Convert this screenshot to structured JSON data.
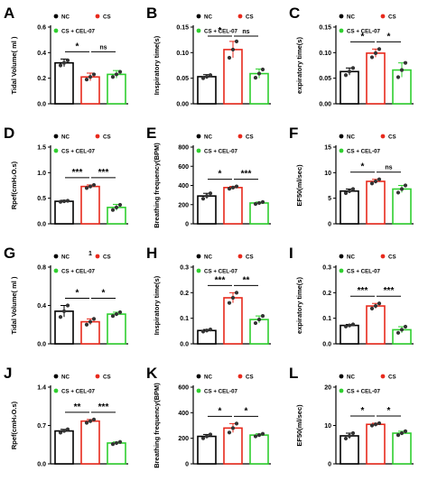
{
  "figure": {
    "stray_mark": "1"
  },
  "colors": {
    "NC": "#000000",
    "CS": "#e8291c",
    "CS + CEL-07": "#2fcf2f",
    "point": "#333333"
  },
  "chart_data": [
    {
      "id": "A",
      "type": "bar",
      "ylabel": "Tidal Volume( ml )",
      "ylim": [
        0,
        0.6
      ],
      "ticks": [
        "0.0",
        "0.2",
        "0.4",
        "0.6"
      ],
      "categories": [
        "NC",
        "CS",
        "CS + CEL-07"
      ],
      "values": [
        0.32,
        0.21,
        0.23
      ],
      "errors": [
        0.03,
        0.03,
        0.03
      ],
      "points": [
        [
          0.3,
          0.32,
          0.34
        ],
        [
          0.19,
          0.21,
          0.23
        ],
        [
          0.21,
          0.23,
          0.25
        ]
      ],
      "comparisons": [
        {
          "from": 0,
          "to": 1,
          "label": "*"
        },
        {
          "from": 1,
          "to": 2,
          "label": "ns"
        }
      ],
      "legend": [
        "NC",
        "CS",
        "CS + CEL-07"
      ]
    },
    {
      "id": "B",
      "type": "bar",
      "ylabel": "Inspiratory time(s)",
      "ylim": [
        0,
        0.15
      ],
      "ticks": [
        "0.00",
        "0.05",
        "0.10",
        "0.15"
      ],
      "categories": [
        "NC",
        "CS",
        "CS + CEL-07"
      ],
      "values": [
        0.053,
        0.106,
        0.059
      ],
      "errors": [
        0.004,
        0.016,
        0.009
      ],
      "points": [
        [
          0.05,
          0.053,
          0.056
        ],
        [
          0.09,
          0.106,
          0.122
        ],
        [
          0.051,
          0.059,
          0.067
        ]
      ],
      "comparisons": [
        {
          "from": 0,
          "to": 1,
          "label": "*"
        },
        {
          "from": 1,
          "to": 2,
          "label": "ns"
        }
      ],
      "legend": [
        "NC",
        "CS",
        "CS + CEL-07"
      ]
    },
    {
      "id": "C",
      "type": "bar",
      "ylabel": "expiratory time(s)",
      "ylim": [
        0,
        0.15
      ],
      "ticks": [
        "0.00",
        "0.05",
        "0.10",
        "0.15"
      ],
      "categories": [
        "NC",
        "CS",
        "CS + CEL-07"
      ],
      "values": [
        0.063,
        0.099,
        0.066
      ],
      "errors": [
        0.007,
        0.008,
        0.014
      ],
      "points": [
        [
          0.056,
          0.063,
          0.07
        ],
        [
          0.091,
          0.099,
          0.107
        ],
        [
          0.052,
          0.066,
          0.08
        ]
      ],
      "comparisons": [
        {
          "from": 0,
          "to": 1,
          "label": "*"
        },
        {
          "from": 1,
          "to": 2,
          "label": "*"
        }
      ],
      "legend": [
        "NC",
        "CS",
        "CS + CEL-07"
      ]
    },
    {
      "id": "D",
      "type": "bar",
      "ylabel": "Rpef(cmH₂O.s)",
      "ylim": [
        0,
        1.5
      ],
      "ticks": [
        "0.0",
        "0.5",
        "1.0",
        "1.5"
      ],
      "categories": [
        "NC",
        "CS",
        "CS + CEL-07"
      ],
      "values": [
        0.44,
        0.73,
        0.32
      ],
      "errors": [
        0.02,
        0.03,
        0.06
      ],
      "points": [
        [
          0.43,
          0.44,
          0.45
        ],
        [
          0.7,
          0.73,
          0.76
        ],
        [
          0.27,
          0.32,
          0.37
        ]
      ],
      "comparisons": [
        {
          "from": 0,
          "to": 1,
          "label": "***"
        },
        {
          "from": 1,
          "to": 2,
          "label": "***"
        }
      ],
      "legend": [
        "NC",
        "CS",
        "CS + CEL-07"
      ]
    },
    {
      "id": "E",
      "type": "bar",
      "ylabel": "Breathing frequency(BPM)",
      "ylim": [
        0,
        800
      ],
      "ticks": [
        "0",
        "200",
        "400",
        "600",
        "800"
      ],
      "categories": [
        "NC",
        "CS",
        "CS + CEL-07"
      ],
      "values": [
        290,
        378,
        217
      ],
      "errors": [
        28,
        12,
        10
      ],
      "points": [
        [
          262,
          290,
          318
        ],
        [
          366,
          378,
          390
        ],
        [
          207,
          217,
          227
        ]
      ],
      "comparisons": [
        {
          "from": 0,
          "to": 1,
          "label": "*"
        },
        {
          "from": 1,
          "to": 2,
          "label": "***"
        }
      ],
      "legend": [
        "NC",
        "CS",
        "CS + CEL-07"
      ]
    },
    {
      "id": "F",
      "type": "bar",
      "ylabel": "EF50(ml/sec)",
      "ylim": [
        0,
        15
      ],
      "ticks": [
        "0",
        "5",
        "10",
        "15"
      ],
      "categories": [
        "NC",
        "CS",
        "CS + CEL-07"
      ],
      "values": [
        6.4,
        8.3,
        6.8
      ],
      "errors": [
        0.4,
        0.4,
        0.7
      ],
      "points": [
        [
          6.0,
          6.4,
          6.8
        ],
        [
          7.9,
          8.3,
          8.7
        ],
        [
          6.1,
          6.8,
          7.5
        ]
      ],
      "comparisons": [
        {
          "from": 0,
          "to": 1,
          "label": "*"
        },
        {
          "from": 1,
          "to": 2,
          "label": "ns"
        }
      ],
      "legend": [
        "NC",
        "CS",
        "CS + CEL-07"
      ]
    },
    {
      "id": "G",
      "type": "bar",
      "ylabel": "Tidal Volume( ml )",
      "ylim": [
        0,
        0.8
      ],
      "ticks": [
        "0.0",
        "0.4",
        "0.8"
      ],
      "categories": [
        "NC",
        "CS",
        "CS + CEL-07"
      ],
      "values": [
        0.34,
        0.23,
        0.31
      ],
      "errors": [
        0.06,
        0.03,
        0.02
      ],
      "points": [
        [
          0.28,
          0.34,
          0.4
        ],
        [
          0.2,
          0.23,
          0.26
        ],
        [
          0.29,
          0.31,
          0.33
        ]
      ],
      "comparisons": [
        {
          "from": 0,
          "to": 1,
          "label": "*"
        },
        {
          "from": 1,
          "to": 2,
          "label": "*"
        }
      ],
      "legend": [
        "NC",
        "CS",
        "CS + CEL-07"
      ]
    },
    {
      "id": "H",
      "type": "bar",
      "ylabel": "Inspiratory time(s)",
      "ylim": [
        0,
        0.3
      ],
      "ticks": [
        "0.0",
        "0.1",
        "0.2",
        "0.3"
      ],
      "categories": [
        "NC",
        "CS",
        "CS + CEL-07"
      ],
      "values": [
        0.052,
        0.18,
        0.095
      ],
      "errors": [
        0.004,
        0.02,
        0.014
      ],
      "points": [
        [
          0.048,
          0.052,
          0.056
        ],
        [
          0.16,
          0.18,
          0.2
        ],
        [
          0.081,
          0.095,
          0.109
        ]
      ],
      "comparisons": [
        {
          "from": 0,
          "to": 1,
          "label": "***"
        },
        {
          "from": 1,
          "to": 2,
          "label": "**"
        }
      ],
      "legend": [
        "NC",
        "CS",
        "CS + CEL-07"
      ]
    },
    {
      "id": "I",
      "type": "bar",
      "ylabel": "expiratory time(s)",
      "ylim": [
        0,
        0.3
      ],
      "ticks": [
        "0.0",
        "0.1",
        "0.2",
        "0.3"
      ],
      "categories": [
        "NC",
        "CS",
        "CS + CEL-07"
      ],
      "values": [
        0.072,
        0.148,
        0.055
      ],
      "errors": [
        0.004,
        0.01,
        0.012
      ],
      "points": [
        [
          0.068,
          0.072,
          0.076
        ],
        [
          0.138,
          0.148,
          0.158
        ],
        [
          0.043,
          0.055,
          0.067
        ]
      ],
      "comparisons": [
        {
          "from": 0,
          "to": 1,
          "label": "***"
        },
        {
          "from": 1,
          "to": 2,
          "label": "***"
        }
      ],
      "legend": [
        "NC",
        "CS",
        "CS + CEL-07"
      ]
    },
    {
      "id": "J",
      "type": "bar",
      "ylabel": "Rpef(cmH₂O.s)",
      "ylim": [
        0,
        1.4
      ],
      "ticks": [
        "0.0",
        "0.7",
        "1.4"
      ],
      "categories": [
        "NC",
        "CS",
        "CS + CEL-07"
      ],
      "values": [
        0.6,
        0.78,
        0.38
      ],
      "errors": [
        0.03,
        0.03,
        0.02
      ],
      "points": [
        [
          0.57,
          0.6,
          0.63
        ],
        [
          0.75,
          0.78,
          0.81
        ],
        [
          0.36,
          0.38,
          0.4
        ]
      ],
      "comparisons": [
        {
          "from": 0,
          "to": 1,
          "label": "**"
        },
        {
          "from": 1,
          "to": 2,
          "label": "***"
        }
      ],
      "legend": [
        "NC",
        "CS",
        "CS + CEL-07"
      ]
    },
    {
      "id": "K",
      "type": "bar",
      "ylabel": "Breathing frequency(BPM)",
      "ylim": [
        0,
        600
      ],
      "ticks": [
        "0",
        "200",
        "400",
        "600"
      ],
      "categories": [
        "NC",
        "CS",
        "CS + CEL-07"
      ],
      "values": [
        215,
        280,
        225
      ],
      "errors": [
        15,
        35,
        10
      ],
      "points": [
        [
          200,
          215,
          230
        ],
        [
          245,
          280,
          315
        ],
        [
          215,
          225,
          235
        ]
      ],
      "comparisons": [
        {
          "from": 0,
          "to": 1,
          "label": "*"
        },
        {
          "from": 1,
          "to": 2,
          "label": "*"
        }
      ],
      "legend": [
        "NC",
        "CS",
        "CS + CEL-07"
      ]
    },
    {
      "id": "L",
      "type": "bar",
      "ylabel": "EF50(ml/sec)",
      "ylim": [
        0,
        20
      ],
      "ticks": [
        "0",
        "10",
        "20"
      ],
      "categories": [
        "NC",
        "CS",
        "CS + CEL-07"
      ],
      "values": [
        7.3,
        10.3,
        8.0
      ],
      "errors": [
        0.7,
        0.3,
        0.5
      ],
      "points": [
        [
          6.6,
          7.3,
          8.0
        ],
        [
          10.0,
          10.3,
          10.6
        ],
        [
          7.5,
          8.0,
          8.5
        ]
      ],
      "comparisons": [
        {
          "from": 0,
          "to": 1,
          "label": "*"
        },
        {
          "from": 1,
          "to": 2,
          "label": "*"
        }
      ],
      "legend": [
        "NC",
        "CS",
        "CS + CEL-07"
      ]
    }
  ]
}
